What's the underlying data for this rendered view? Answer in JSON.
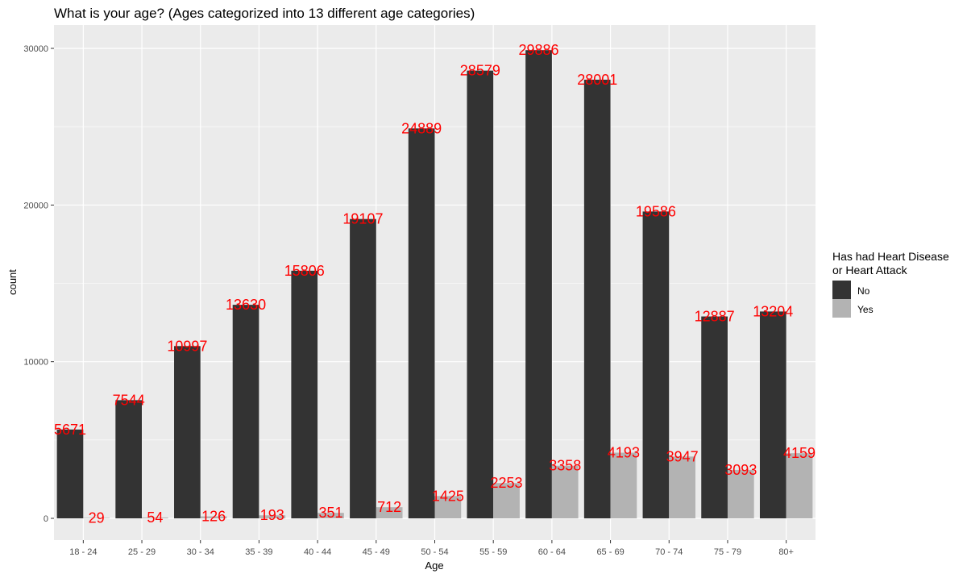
{
  "chart_data": {
    "type": "bar",
    "title": "What is your age? (Ages categorized into 13 different age categories)",
    "xlabel": "Age",
    "ylabel": "count",
    "ylim": [
      0,
      30000
    ],
    "y_ticks": [
      0,
      10000,
      20000,
      30000
    ],
    "grid": true,
    "categories": [
      "18 - 24",
      "25 - 29",
      "30 - 34",
      "35 - 39",
      "40 - 44",
      "45 - 49",
      "50 - 54",
      "55 - 59",
      "60 - 64",
      "65 - 69",
      "70 - 74",
      "75 - 79",
      "80+"
    ],
    "series": [
      {
        "name": "No",
        "color": "#333333",
        "values": [
          5671,
          7544,
          10997,
          13630,
          15806,
          19107,
          24889,
          28579,
          29886,
          28001,
          19586,
          12887,
          13204
        ]
      },
      {
        "name": "Yes",
        "color": "#b3b3b3",
        "values": [
          29,
          54,
          126,
          193,
          351,
          712,
          1425,
          2253,
          3358,
          4193,
          3947,
          3093,
          4159
        ]
      }
    ],
    "legend": {
      "title_lines": [
        "Has had Heart Disease",
        "or Heart Attack"
      ],
      "position": "right"
    },
    "data_label_color": "#ff0000",
    "panel_background": "#ebebeb"
  }
}
